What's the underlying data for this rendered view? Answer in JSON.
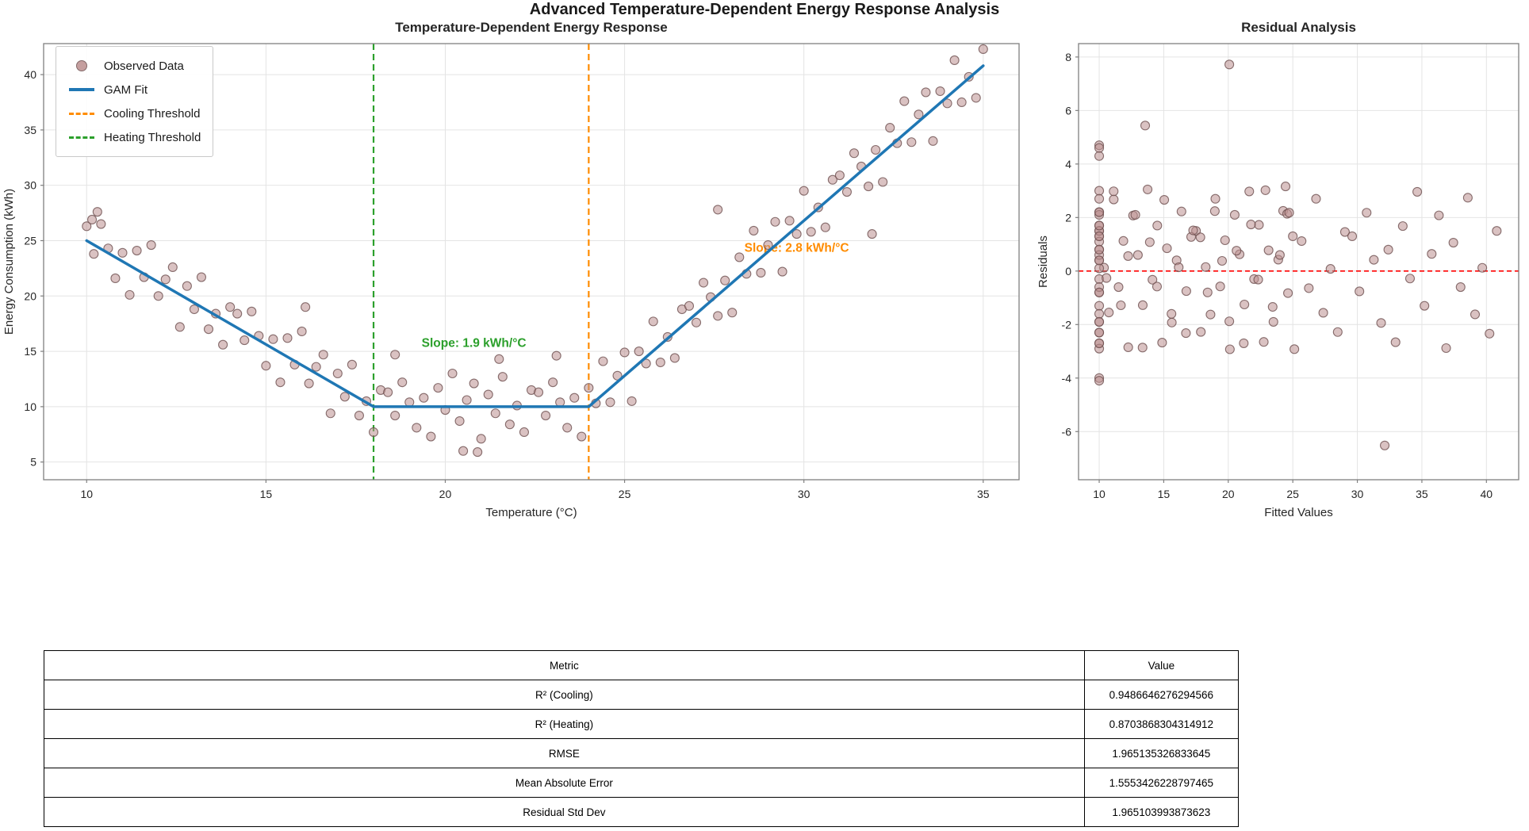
{
  "figure": {
    "title": "Advanced Temperature-Dependent Energy Response Analysis"
  },
  "chart_data": [
    {
      "type": "scatter",
      "title": "Temperature-Dependent Energy Response",
      "xlabel": "Temperature (°C)",
      "ylabel": "Energy Consumption (kWh)",
      "xlim": [
        8.8,
        36.0
      ],
      "ylim": [
        3.4,
        42.8
      ],
      "xticks": [
        10,
        15,
        20,
        25,
        30,
        35
      ],
      "yticks": [
        5,
        10,
        15,
        20,
        25,
        30,
        35,
        40
      ],
      "grid": true,
      "point_color": "#bc8f8f",
      "point_edge": "#6d4f4f",
      "legend_position": "upper-left",
      "legend": [
        {
          "label": "Observed Data",
          "swatch": "marker",
          "color": "#bc8f8f"
        },
        {
          "label": "GAM Fit",
          "swatch": "line",
          "color": "#1f77b4"
        },
        {
          "label": "Cooling Threshold",
          "swatch": "dashed",
          "color": "#ff8c00"
        },
        {
          "label": "Heating Threshold",
          "swatch": "dashed",
          "color": "#2ca02c"
        }
      ],
      "gam_fit": {
        "color": "#1f77b4",
        "width": 3.5,
        "points": [
          [
            10,
            25
          ],
          [
            18,
            10
          ],
          [
            24,
            10
          ],
          [
            35,
            40.8
          ]
        ]
      },
      "cooling_threshold": {
        "x": 24,
        "color": "#ff8c00"
      },
      "heating_threshold": {
        "x": 18,
        "color": "#2ca02c"
      },
      "annotations": [
        {
          "text": "Slope: 1.9 kWh/°C",
          "x": 20.8,
          "y": 15.4,
          "color": "#2ca02c"
        },
        {
          "text": "Slope: 2.8 kWh/°C",
          "x": 29.8,
          "y": 24.0,
          "color": "#ff8c00"
        }
      ],
      "observed": [
        [
          10.0,
          26.3
        ],
        [
          10.2,
          23.8
        ],
        [
          10.4,
          26.5
        ],
        [
          10.6,
          24.3
        ],
        [
          10.8,
          21.6
        ],
        [
          11.0,
          23.9
        ],
        [
          11.2,
          20.1
        ],
        [
          11.4,
          24.1
        ],
        [
          11.6,
          21.7
        ],
        [
          11.8,
          24.6
        ],
        [
          12.0,
          20.0
        ],
        [
          12.2,
          21.5
        ],
        [
          12.4,
          22.6
        ],
        [
          12.6,
          17.2
        ],
        [
          12.8,
          20.9
        ],
        [
          13.0,
          18.8
        ],
        [
          13.2,
          21.7
        ],
        [
          13.4,
          17.0
        ],
        [
          13.6,
          18.4
        ],
        [
          13.8,
          15.6
        ],
        [
          14.0,
          19.0
        ],
        [
          14.2,
          18.4
        ],
        [
          14.4,
          16.0
        ],
        [
          14.6,
          18.6
        ],
        [
          14.8,
          16.4
        ],
        [
          15.0,
          13.7
        ],
        [
          15.2,
          16.1
        ],
        [
          15.4,
          12.2
        ],
        [
          15.6,
          16.2
        ],
        [
          15.8,
          13.8
        ],
        [
          16.0,
          16.8
        ],
        [
          16.2,
          12.1
        ],
        [
          16.4,
          13.6
        ],
        [
          16.6,
          14.7
        ],
        [
          16.8,
          9.4
        ],
        [
          17.0,
          13.0
        ],
        [
          17.2,
          10.9
        ],
        [
          17.4,
          13.8
        ],
        [
          17.6,
          9.2
        ],
        [
          17.8,
          10.5
        ],
        [
          18.0,
          7.7
        ],
        [
          18.2,
          11.5
        ],
        [
          18.4,
          11.3
        ],
        [
          18.6,
          9.2
        ],
        [
          18.8,
          12.2
        ],
        [
          19.0,
          10.4
        ],
        [
          19.2,
          8.1
        ],
        [
          19.4,
          10.8
        ],
        [
          19.6,
          7.3
        ],
        [
          19.8,
          11.7
        ],
        [
          20.0,
          9.7
        ],
        [
          20.2,
          13.0
        ],
        [
          20.4,
          8.7
        ],
        [
          20.6,
          10.6
        ],
        [
          20.8,
          12.1
        ],
        [
          21.0,
          7.1
        ],
        [
          21.2,
          11.1
        ],
        [
          21.4,
          9.4
        ],
        [
          21.6,
          12.7
        ],
        [
          21.8,
          8.4
        ],
        [
          22.0,
          10.1
        ],
        [
          22.2,
          7.7
        ],
        [
          22.4,
          11.5
        ],
        [
          22.6,
          11.3
        ],
        [
          22.8,
          9.2
        ],
        [
          23.0,
          12.2
        ],
        [
          23.2,
          10.4
        ],
        [
          23.4,
          8.1
        ],
        [
          23.6,
          10.8
        ],
        [
          23.8,
          7.3
        ],
        [
          24.0,
          11.7
        ],
        [
          24.2,
          10.3
        ],
        [
          24.4,
          14.1
        ],
        [
          24.6,
          10.4
        ],
        [
          24.8,
          12.8
        ],
        [
          25.0,
          14.9
        ],
        [
          25.2,
          10.5
        ],
        [
          25.4,
          15.0
        ],
        [
          25.6,
          13.9
        ],
        [
          25.8,
          17.7
        ],
        [
          26.0,
          14.0
        ],
        [
          26.2,
          16.3
        ],
        [
          26.4,
          14.4
        ],
        [
          26.6,
          18.8
        ],
        [
          26.8,
          19.1
        ],
        [
          27.0,
          17.6
        ],
        [
          27.2,
          21.2
        ],
        [
          27.4,
          19.9
        ],
        [
          27.6,
          18.2
        ],
        [
          27.8,
          21.4
        ],
        [
          28.0,
          18.5
        ],
        [
          28.2,
          23.5
        ],
        [
          28.4,
          22.0
        ],
        [
          28.6,
          25.9
        ],
        [
          28.8,
          22.1
        ],
        [
          29.0,
          24.6
        ],
        [
          29.2,
          26.7
        ],
        [
          29.4,
          22.2
        ],
        [
          29.6,
          26.8
        ],
        [
          29.8,
          25.6
        ],
        [
          30.0,
          29.5
        ],
        [
          30.2,
          25.8
        ],
        [
          30.4,
          28.0
        ],
        [
          30.6,
          26.2
        ],
        [
          30.8,
          30.5
        ],
        [
          31.0,
          30.9
        ],
        [
          31.2,
          29.4
        ],
        [
          31.4,
          32.9
        ],
        [
          31.6,
          31.7
        ],
        [
          31.8,
          29.9
        ],
        [
          32.0,
          33.2
        ],
        [
          32.2,
          30.3
        ],
        [
          32.4,
          35.2
        ],
        [
          32.6,
          33.8
        ],
        [
          32.8,
          37.6
        ],
        [
          33.0,
          33.9
        ],
        [
          33.2,
          36.4
        ],
        [
          33.4,
          38.4
        ],
        [
          33.6,
          34.0
        ],
        [
          33.8,
          38.5
        ],
        [
          34.0,
          37.4
        ],
        [
          34.2,
          41.3
        ],
        [
          34.4,
          37.5
        ],
        [
          34.6,
          39.8
        ],
        [
          34.8,
          37.9
        ],
        [
          35.0,
          42.3
        ],
        [
          10.15,
          26.9
        ],
        [
          10.3,
          27.6
        ],
        [
          16.1,
          19.0
        ],
        [
          18.6,
          14.7
        ],
        [
          20.5,
          6.0
        ],
        [
          20.9,
          5.9
        ],
        [
          21.5,
          14.3
        ],
        [
          23.1,
          14.6
        ],
        [
          27.6,
          27.8
        ],
        [
          31.9,
          25.6
        ]
      ]
    },
    {
      "type": "scatter",
      "title": "Residual Analysis",
      "xlabel": "Fitted Values",
      "ylabel": "Residuals",
      "xlim": [
        8.4,
        42.5
      ],
      "ylim": [
        -7.8,
        8.5
      ],
      "xticks": [
        10,
        15,
        20,
        25,
        30,
        35,
        40
      ],
      "yticks": [
        -6,
        -4,
        -2,
        0,
        2,
        4,
        6,
        8
      ],
      "grid": true,
      "point_color": "#bc8f8f",
      "point_edge": "#6d4f4f",
      "zero_line": {
        "y": 0,
        "color": "#ff0000",
        "style": "dashed"
      },
      "residuals_source": "derived: fitted = GAM fit evaluated at observed x; residual = observed y - fitted"
    }
  ],
  "table": {
    "headers": [
      "Metric",
      "Value"
    ],
    "rows": [
      [
        "R² (Cooling)",
        "0.9486646276294566"
      ],
      [
        "R² (Heating)",
        "0.8703868304314912"
      ],
      [
        "RMSE",
        "1.965135326833645"
      ],
      [
        "Mean Absolute Error",
        "1.5553426228797465"
      ],
      [
        "Residual Std Dev",
        "1.965103993873623"
      ]
    ]
  }
}
